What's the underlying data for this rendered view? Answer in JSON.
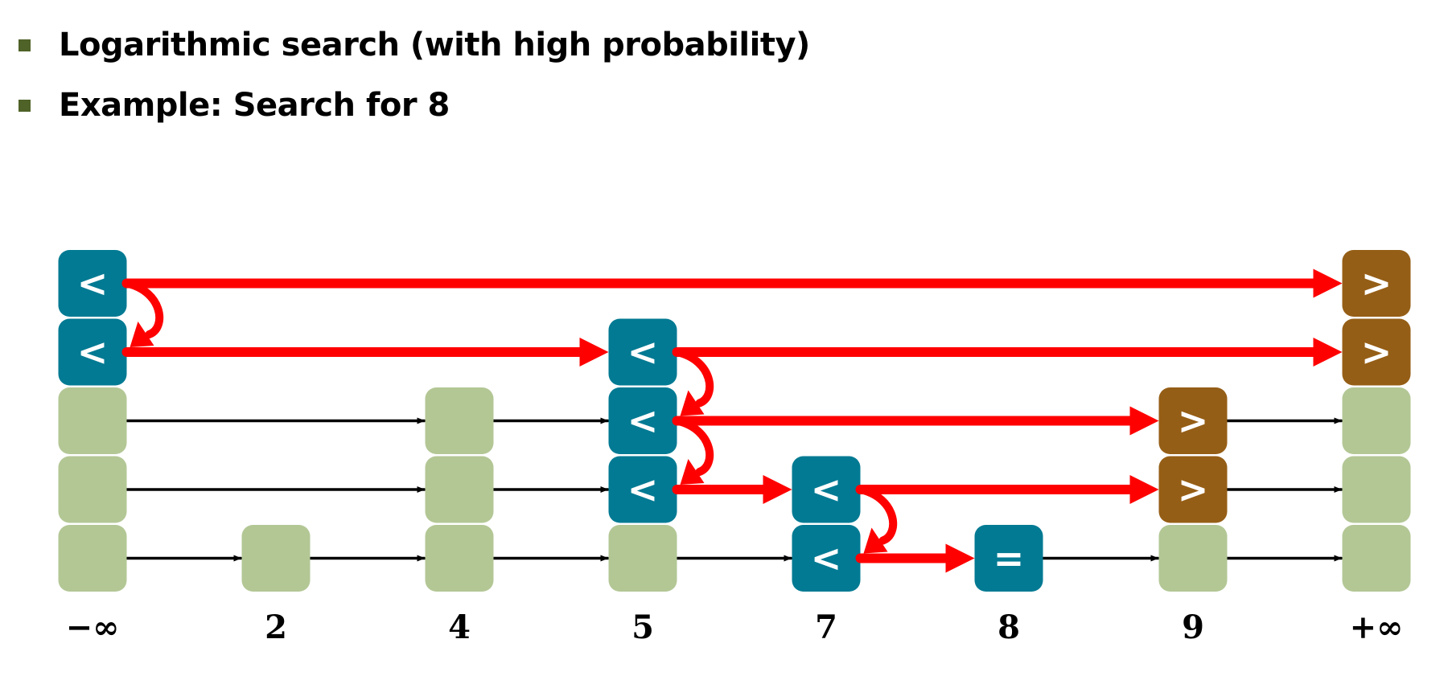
{
  "bullets": [
    "Logarithmic search (with high probability)",
    "Example: Search for 8"
  ],
  "colors": {
    "bullet": "#4F6228",
    "node_plain": "#B3C795",
    "node_less": "#027A93",
    "node_greater": "#955E16",
    "node_equal": "#027A93",
    "search_path": "#FF0000",
    "link": "#000000"
  },
  "skip_list": {
    "columns": [
      {
        "label": "−∞",
        "height": 5,
        "marks": {
          "0": "<",
          "1": "<"
        }
      },
      {
        "label": "2",
        "height": 1,
        "marks": {}
      },
      {
        "label": "4",
        "height": 3,
        "marks": {}
      },
      {
        "label": "5",
        "height": 4,
        "marks": {
          "1": "<",
          "2": "<",
          "3": "<"
        }
      },
      {
        "label": "7",
        "height": 2,
        "marks": {
          "3": "<",
          "4": "<"
        }
      },
      {
        "label": "8",
        "height": 1,
        "marks": {
          "4": "="
        }
      },
      {
        "label": "9",
        "height": 3,
        "marks": {
          "2": ">",
          "3": ">"
        }
      },
      {
        "label": "+∞",
        "height": 5,
        "marks": {
          "0": ">",
          "1": ">"
        }
      }
    ],
    "links": [
      {
        "level": 2,
        "from": 0,
        "to": 2
      },
      {
        "level": 2,
        "from": 2,
        "to": 3
      },
      {
        "level": 2,
        "from": 6,
        "to": 7
      },
      {
        "level": 3,
        "from": 0,
        "to": 2
      },
      {
        "level": 3,
        "from": 2,
        "to": 3
      },
      {
        "level": 3,
        "from": 6,
        "to": 7
      },
      {
        "level": 4,
        "from": 0,
        "to": 1
      },
      {
        "level": 4,
        "from": 1,
        "to": 2
      },
      {
        "level": 4,
        "from": 2,
        "to": 3
      },
      {
        "level": 4,
        "from": 3,
        "to": 4
      },
      {
        "level": 4,
        "from": 5,
        "to": 6
      },
      {
        "level": 4,
        "from": 6,
        "to": 7
      }
    ],
    "search_path": [
      {
        "type": "right",
        "level": 0,
        "from": 0,
        "to": 7
      },
      {
        "type": "down",
        "col": 0,
        "from_level": 0
      },
      {
        "type": "right",
        "level": 1,
        "from": 0,
        "to": 3
      },
      {
        "type": "right",
        "level": 1,
        "from": 3,
        "to": 7
      },
      {
        "type": "down",
        "col": 3,
        "from_level": 1
      },
      {
        "type": "right",
        "level": 2,
        "from": 3,
        "to": 6
      },
      {
        "type": "down",
        "col": 3,
        "from_level": 2
      },
      {
        "type": "right",
        "level": 3,
        "from": 3,
        "to": 4
      },
      {
        "type": "right",
        "level": 3,
        "from": 4,
        "to": 6
      },
      {
        "type": "down",
        "col": 4,
        "from_level": 3
      },
      {
        "type": "right",
        "level": 4,
        "from": 4,
        "to": 5
      }
    ]
  }
}
